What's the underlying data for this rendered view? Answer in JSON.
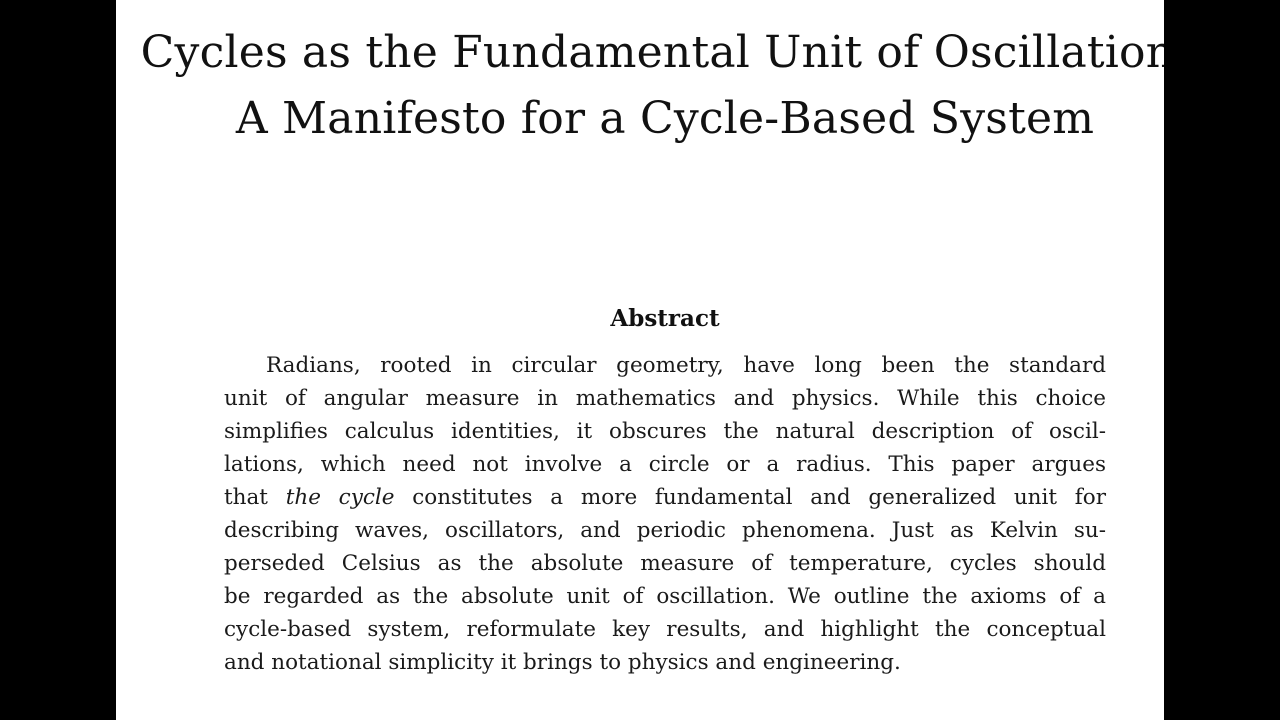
{
  "paper": {
    "title_line1": "Cycles as the Fundamental Unit of Oscillation:",
    "title_line2": "A Manifesto for a Cycle-Based System",
    "abstract_heading": "Abstract",
    "abstract_lines": [
      "Radians, rooted in circular geometry, have long been the standard",
      "unit of angular measure in mathematics and physics. While this choice",
      "simplifies calculus identities, it obscures the natural description of oscil-",
      "lations, which need not involve a circle or a radius. This paper argues",
      "that",
      "the cycle",
      "constitutes a more fundamental and generalized unit for",
      "describing waves, oscillators, and periodic phenomena. Just as Kelvin su-",
      "perseded Celsius as the absolute measure of temperature, cycles should",
      "be regarded as the absolute unit of oscillation. We outline the axioms of a",
      "cycle-based system, reformulate key results, and highlight the conceptual",
      "and notational simplicity it brings to physics and engineering."
    ]
  }
}
